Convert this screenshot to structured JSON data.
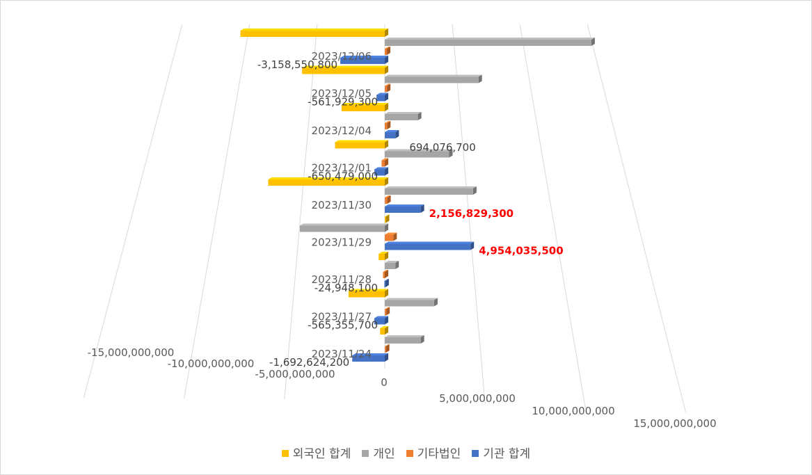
{
  "chart_data": {
    "type": "bar",
    "orientation": "horizontal",
    "style": "3d",
    "categories": [
      "2023/12/06",
      "2023/12/05",
      "2023/12/04",
      "2023/12/01",
      "2023/11/30",
      "2023/11/29",
      "2023/11/28",
      "2023/11/27",
      "2023/11/24"
    ],
    "series": [
      {
        "name": "외국인 합계",
        "color": "#ffc000",
        "values": [
          -10600000000,
          -5800000000,
          -2900000000,
          -3200000000,
          -7200000000,
          50000000,
          -350000000,
          -2000000000,
          -250000000
        ]
      },
      {
        "name": "개인",
        "color": "#a5a5a5",
        "values": [
          15000000000,
          6500000000,
          2200000000,
          4100000000,
          5400000000,
          -5000000000,
          600000000,
          2700000000,
          1900000000
        ]
      },
      {
        "name": "기타법인",
        "color": "#ed7d31",
        "values": [
          150000000,
          150000000,
          150000000,
          -200000000,
          150000000,
          500000000,
          -100000000,
          80000000,
          60000000
        ]
      },
      {
        "name": "기관 합계",
        "color": "#4472c4",
        "values": [
          -3158550800,
          -561929300,
          694076700,
          -650479000,
          2156829300,
          4954035500,
          -24948100,
          -565355700,
          -1692624200
        ]
      }
    ],
    "data_labels": [
      {
        "category": "2023/12/06",
        "series": "기관 합계",
        "text": "-3,158,550,800",
        "highlight": false
      },
      {
        "category": "2023/12/05",
        "series": "기관 합계",
        "text": "-561,929,300",
        "highlight": false
      },
      {
        "category": "2023/12/04",
        "series": "기관 합계",
        "text": "694,076,700",
        "highlight": false
      },
      {
        "category": "2023/12/01",
        "series": "기관 합계",
        "text": "-650,479,000",
        "highlight": false
      },
      {
        "category": "2023/11/30",
        "series": "기관 합계",
        "text": "2,156,829,300",
        "highlight": true
      },
      {
        "category": "2023/11/29",
        "series": "기관 합계",
        "text": "4,954,035,500",
        "highlight": true
      },
      {
        "category": "2023/11/28",
        "series": "기관 합계",
        "text": "-24,948,100",
        "highlight": false
      },
      {
        "category": "2023/11/27",
        "series": "기관 합계",
        "text": "-565,355,700",
        "highlight": false
      },
      {
        "category": "2023/11/24",
        "series": "기관 합계",
        "text": "-1,692,624,200",
        "highlight": false
      }
    ],
    "x_ticks": [
      {
        "value": -15000000000,
        "label": "-15,000,000,000"
      },
      {
        "value": -10000000000,
        "label": "-10,000,000,000"
      },
      {
        "value": -5000000000,
        "label": "-5,000,000,000"
      },
      {
        "value": 0,
        "label": "0"
      },
      {
        "value": 5000000000,
        "label": "5,000,000,000"
      },
      {
        "value": 10000000000,
        "label": "10,000,000,000"
      },
      {
        "value": 15000000000,
        "label": "15,000,000,000"
      }
    ],
    "xlim": [
      -15000000000,
      15000000000
    ],
    "grid": true,
    "legend_position": "bottom",
    "highlight_color": "#ff0000"
  }
}
